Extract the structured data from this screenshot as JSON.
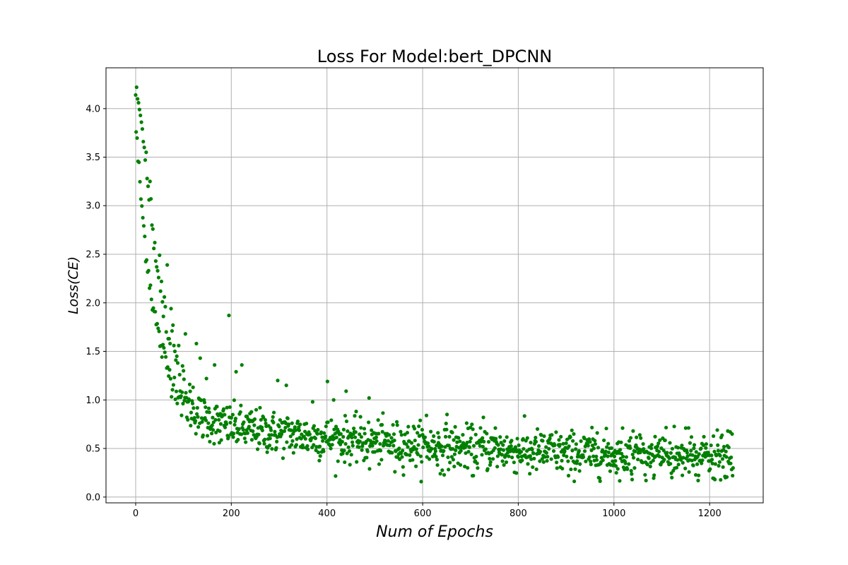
{
  "chart_data": {
    "type": "scatter",
    "title": "Loss For Model:bert_DPCNN",
    "xlabel": "Num of Epochs",
    "ylabel": "Loss(CE)",
    "xlim": [
      -62,
      1312
    ],
    "ylim": [
      -0.06,
      4.42
    ],
    "xticks": [
      0,
      200,
      400,
      600,
      800,
      1000,
      1200
    ],
    "yticks": [
      0.0,
      0.5,
      1.0,
      1.5,
      2.0,
      2.5,
      3.0,
      3.5,
      4.0
    ],
    "grid": true,
    "legend": "none",
    "marker_color": "#008000",
    "n_points": 1250,
    "curve_description": "loss starts near 4.1-4.2 at epoch 0, decays exponentially to about 1.0 by epoch 100 and 0.8 by epoch 250, then slowly declines to roughly 0.35 by epoch 1250",
    "points": [
      [
        0,
        4.14
      ],
      [
        2,
        4.22
      ],
      [
        4,
        4.1
      ],
      [
        6,
        4.06
      ],
      [
        8,
        3.99
      ],
      [
        10,
        3.93
      ],
      [
        12,
        3.86
      ],
      [
        14,
        3.79
      ],
      [
        16,
        3.66
      ],
      [
        18,
        3.6
      ],
      [
        20,
        3.47
      ],
      [
        22,
        3.55
      ],
      [
        24,
        3.28
      ],
      [
        26,
        3.2
      ],
      [
        28,
        3.06
      ],
      [
        30,
        3.25
      ],
      [
        32,
        3.07
      ],
      [
        34,
        2.8
      ],
      [
        36,
        2.76
      ],
      [
        38,
        2.56
      ],
      [
        40,
        2.62
      ],
      [
        42,
        2.43
      ],
      [
        44,
        2.37
      ],
      [
        46,
        2.33
      ],
      [
        48,
        2.26
      ],
      [
        50,
        2.49
      ],
      [
        52,
        2.12
      ],
      [
        54,
        2.22
      ],
      [
        56,
        2.01
      ],
      [
        58,
        1.86
      ],
      [
        60,
        2.06
      ],
      [
        62,
        1.96
      ],
      [
        64,
        1.7
      ],
      [
        66,
        2.39
      ],
      [
        68,
        1.63
      ],
      [
        70,
        1.63
      ],
      [
        72,
        1.58
      ],
      [
        74,
        1.94
      ],
      [
        76,
        1.71
      ],
      [
        78,
        1.77
      ],
      [
        80,
        1.56
      ],
      [
        82,
        1.5
      ],
      [
        84,
        1.41
      ],
      [
        86,
        1.45
      ],
      [
        88,
        1.38
      ],
      [
        90,
        1.56
      ],
      [
        92,
        1.26
      ],
      [
        95,
        1.04
      ],
      [
        98,
        1.35
      ],
      [
        100,
        1.3
      ],
      [
        104,
        1.68
      ],
      [
        108,
        0.98
      ],
      [
        113,
        1.16
      ],
      [
        120,
        1.13
      ],
      [
        127,
        1.58
      ],
      [
        195,
        1.87
      ],
      [
        135,
        1.43
      ],
      [
        148,
        1.22
      ],
      [
        140,
        0.62
      ],
      [
        165,
        1.36
      ],
      [
        175,
        0.56
      ],
      [
        222,
        1.36
      ],
      [
        210,
        1.29
      ],
      [
        297,
        1.2
      ],
      [
        315,
        1.15
      ],
      [
        401,
        1.19
      ],
      [
        440,
        1.09
      ],
      [
        488,
        1.02
      ],
      [
        414,
        1.0
      ],
      [
        370,
        0.98
      ],
      [
        608,
        0.84
      ],
      [
        651,
        0.85
      ],
      [
        727,
        0.82
      ],
      [
        752,
        0.71
      ],
      [
        870,
        0.64
      ],
      [
        965,
        0.66
      ],
      [
        1040,
        0.68
      ],
      [
        1150,
        0.71
      ],
      [
        1238,
        0.68
      ],
      [
        1243,
        0.67
      ],
      [
        489,
        0.29
      ],
      [
        542,
        0.26
      ],
      [
        637,
        0.24
      ],
      [
        706,
        0.22
      ],
      [
        824,
        0.24
      ],
      [
        905,
        0.22
      ],
      [
        1038,
        0.18
      ],
      [
        1067,
        0.17
      ],
      [
        1121,
        0.2
      ],
      [
        1176,
        0.17
      ],
      [
        1211,
        0.18
      ],
      [
        1233,
        0.2
      ],
      [
        1248,
        0.22
      ]
    ]
  }
}
